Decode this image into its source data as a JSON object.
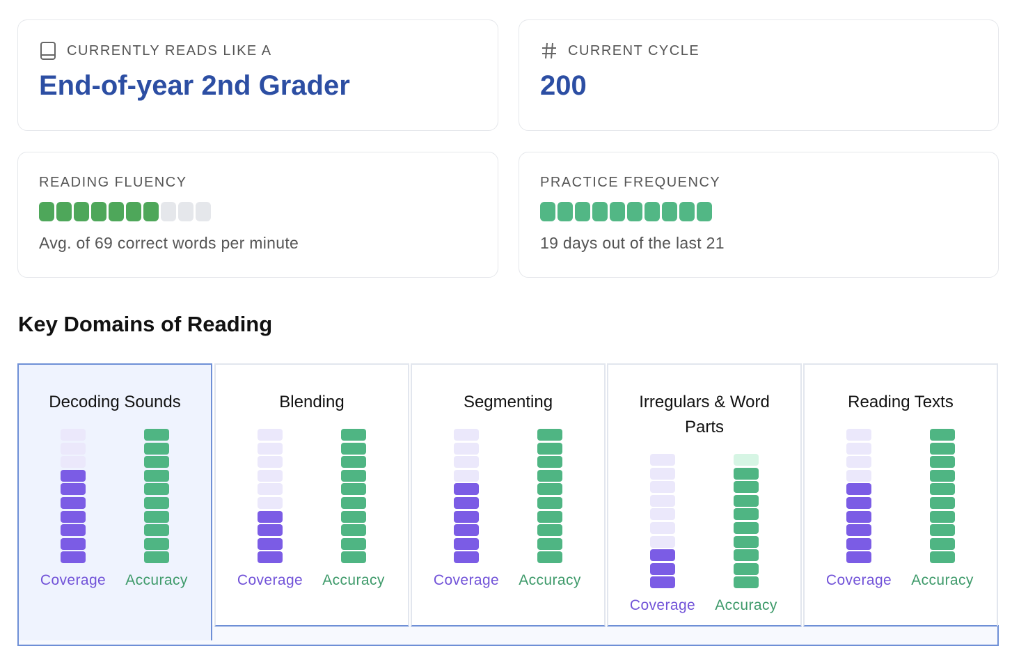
{
  "summary": {
    "reads_like": {
      "label": "CURRENTLY READS LIKE A",
      "value": "End-of-year 2nd Grader"
    },
    "cycle": {
      "label": "CURRENT CYCLE",
      "value": "200"
    },
    "fluency": {
      "label": "READING FLUENCY",
      "filled": 7,
      "total": 10,
      "caption": "Avg. of 69 correct words per minute"
    },
    "practice": {
      "label": "PRACTICE FREQUENCY",
      "filled": 10,
      "total": 10,
      "caption": "19 days out of the last 21"
    }
  },
  "section_title": "Key Domains of Reading",
  "domains": [
    {
      "name": "Decoding Sounds",
      "selected": true,
      "coverage": {
        "label": "Coverage",
        "filled": 7,
        "total": 10
      },
      "accuracy": {
        "label": "Accuracy",
        "filled": 10,
        "total": 10
      }
    },
    {
      "name": "Blending",
      "selected": false,
      "coverage": {
        "label": "Coverage",
        "filled": 4,
        "total": 10
      },
      "accuracy": {
        "label": "Accuracy",
        "filled": 10,
        "total": 10
      }
    },
    {
      "name": "Segmenting",
      "selected": false,
      "coverage": {
        "label": "Coverage",
        "filled": 6,
        "total": 10
      },
      "accuracy": {
        "label": "Accuracy",
        "filled": 10,
        "total": 10
      }
    },
    {
      "name": "Irregulars & Word Parts",
      "selected": false,
      "coverage": {
        "label": "Coverage",
        "filled": 3,
        "total": 10
      },
      "accuracy": {
        "label": "Accuracy",
        "filled": 9,
        "total": 10
      }
    },
    {
      "name": "Reading Texts",
      "selected": false,
      "coverage": {
        "label": "Coverage",
        "filled": 6,
        "total": 10
      },
      "accuracy": {
        "label": "Accuracy",
        "filled": 10,
        "total": 10
      }
    }
  ]
}
